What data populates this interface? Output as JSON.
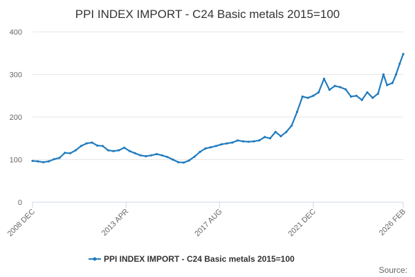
{
  "chart_data": {
    "type": "line",
    "title": "PPI INDEX IMPORT - C24 Basic metals 2015=100",
    "xlabel": "",
    "ylabel": "",
    "x_range": [
      "2008 DEC",
      "2026 FEB"
    ],
    "x_tick_labels": [
      "2008 DEC",
      "2013 APR",
      "2017 AUG",
      "2021 DEC",
      "2026 FEB"
    ],
    "ylim": [
      0,
      400
    ],
    "y_ticks": [
      0,
      100,
      200,
      300,
      400
    ],
    "grid": true,
    "legend_position": "bottom-center",
    "series": [
      {
        "name": "PPI INDEX IMPORT - C24 Basic metals 2015=100",
        "color": "#1f7bbf",
        "points": [
          [
            "2008 DEC",
            97
          ],
          [
            "2009 MAR",
            96
          ],
          [
            "2009 JUN",
            94
          ],
          [
            "2009 SEP",
            96
          ],
          [
            "2009 DEC",
            101
          ],
          [
            "2010 MAR",
            104
          ],
          [
            "2010 JUN",
            116
          ],
          [
            "2010 SEP",
            115
          ],
          [
            "2010 DEC",
            122
          ],
          [
            "2011 MAR",
            132
          ],
          [
            "2011 JUN",
            138
          ],
          [
            "2011 SEP",
            140
          ],
          [
            "2011 DEC",
            133
          ],
          [
            "2012 MAR",
            132
          ],
          [
            "2012 JUN",
            122
          ],
          [
            "2012 SEP",
            120
          ],
          [
            "2012 DEC",
            122
          ],
          [
            "2013 MAR",
            128
          ],
          [
            "2013 JUN",
            120
          ],
          [
            "2013 SEP",
            115
          ],
          [
            "2013 DEC",
            110
          ],
          [
            "2014 MAR",
            108
          ],
          [
            "2014 JUN",
            110
          ],
          [
            "2014 SEP",
            113
          ],
          [
            "2014 DEC",
            110
          ],
          [
            "2015 MAR",
            106
          ],
          [
            "2015 JUN",
            100
          ],
          [
            "2015 SEP",
            94
          ],
          [
            "2015 DEC",
            93
          ],
          [
            "2016 MAR",
            98
          ],
          [
            "2016 JUN",
            107
          ],
          [
            "2016 SEP",
            118
          ],
          [
            "2016 DEC",
            126
          ],
          [
            "2017 MAR",
            129
          ],
          [
            "2017 JUN",
            132
          ],
          [
            "2017 SEP",
            136
          ],
          [
            "2017 DEC",
            138
          ],
          [
            "2018 MAR",
            140
          ],
          [
            "2018 JUN",
            145
          ],
          [
            "2018 SEP",
            143
          ],
          [
            "2018 DEC",
            142
          ],
          [
            "2019 MAR",
            143
          ],
          [
            "2019 JUN",
            145
          ],
          [
            "2019 SEP",
            153
          ],
          [
            "2019 DEC",
            150
          ],
          [
            "2020 MAR",
            165
          ],
          [
            "2020 JUN",
            155
          ],
          [
            "2020 SEP",
            165
          ],
          [
            "2020 DEC",
            180
          ],
          [
            "2021 MAR",
            212
          ],
          [
            "2021 JUN",
            248
          ],
          [
            "2021 SEP",
            245
          ],
          [
            "2021 DEC",
            250
          ],
          [
            "2022 MAR",
            258
          ],
          [
            "2022 JUN",
            290
          ],
          [
            "2022 SEP",
            264
          ],
          [
            "2022 DEC",
            273
          ],
          [
            "2023 MAR",
            270
          ],
          [
            "2023 JUN",
            265
          ],
          [
            "2023 SEP",
            248
          ],
          [
            "2023 DEC",
            250
          ],
          [
            "2024 MAR",
            240
          ],
          [
            "2024 JUN",
            258
          ],
          [
            "2024 SEP",
            245
          ],
          [
            "2024 DEC",
            255
          ],
          [
            "2025 MAR",
            300
          ],
          [
            "2025 MAY",
            275
          ],
          [
            "2025 AUG",
            280
          ],
          [
            "2025 OCT",
            300
          ],
          [
            "2025 DEC",
            325
          ],
          [
            "2026 FEB",
            348
          ]
        ]
      }
    ]
  },
  "footer": {
    "source_label": "Source:"
  }
}
